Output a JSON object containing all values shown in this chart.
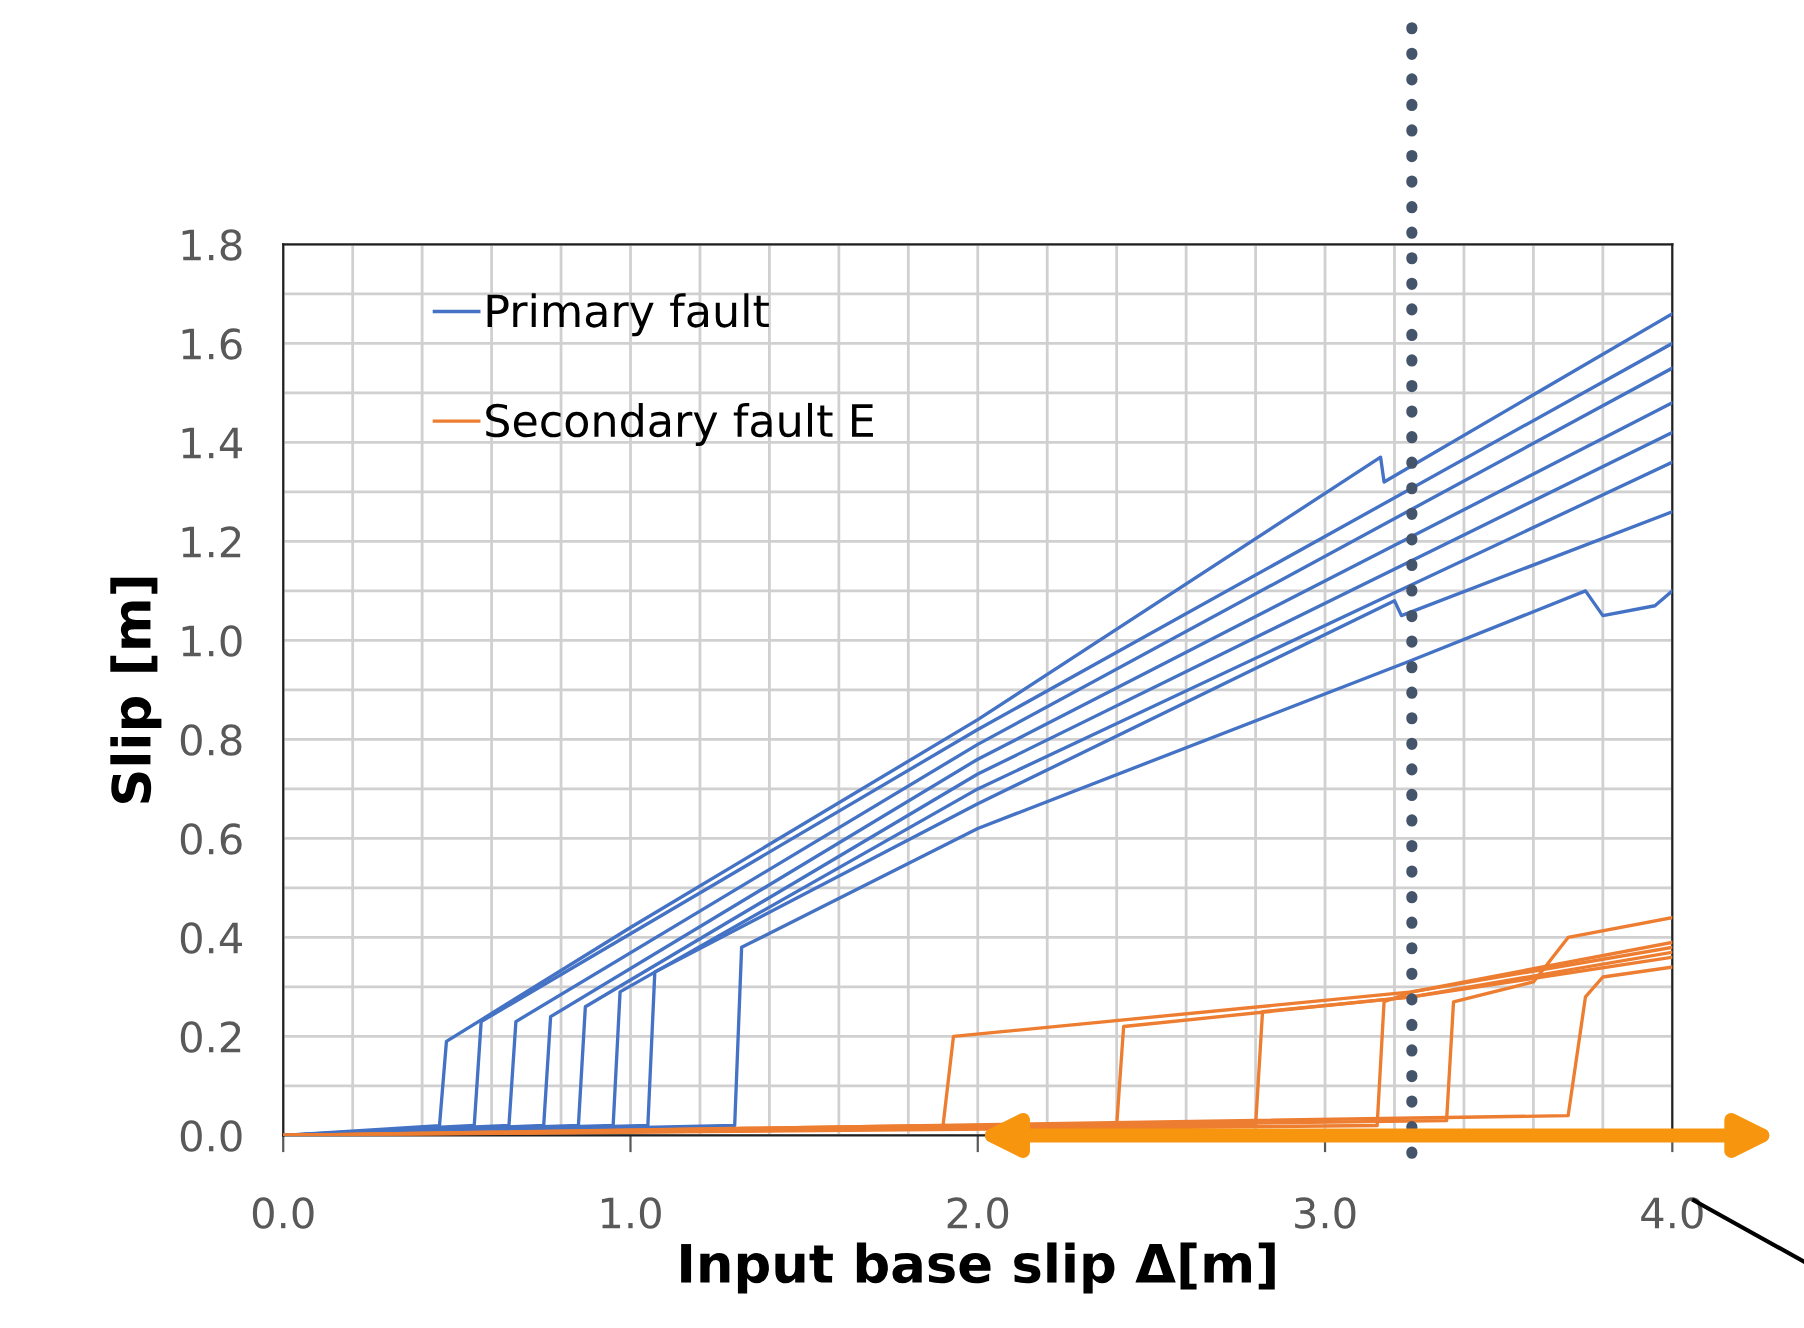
{
  "chart_data": {
    "type": "line",
    "xlabel": "Input base slip Δ[m]",
    "ylabel": "Slip [m]",
    "xlim": [
      0,
      4
    ],
    "ylim": [
      0,
      1.8
    ],
    "xticks": [
      {
        "value": 0,
        "label": "0.0"
      },
      {
        "value": 1,
        "label": "1.0"
      },
      {
        "value": 2,
        "label": "2.0"
      },
      {
        "value": 3,
        "label": "3.0"
      },
      {
        "value": 4,
        "label": "4.0"
      }
    ],
    "yticks": [
      {
        "value": 0,
        "label": "0.0"
      },
      {
        "value": 0.2,
        "label": "0.2"
      },
      {
        "value": 0.4,
        "label": "0.4"
      },
      {
        "value": 0.6,
        "label": "0.6"
      },
      {
        "value": 0.8,
        "label": "0.8"
      },
      {
        "value": 1.0,
        "label": "1.0"
      },
      {
        "value": 1.2,
        "label": "1.2"
      },
      {
        "value": 1.4,
        "label": "1.4"
      },
      {
        "value": 1.6,
        "label": "1.6"
      },
      {
        "value": 1.8,
        "label": "1.8"
      }
    ],
    "grid": true,
    "legend": "top left",
    "marker": "none",
    "line_style": "solid",
    "ref_lines": [
      {
        "axis": "x",
        "value": 3.25,
        "label": null,
        "color": "#44546a",
        "line_style": "dotted"
      }
    ],
    "series": [
      {
        "name": "Primary fault",
        "color": "#4472c4",
        "x": [
          0,
          0.45,
          0.47,
          1.0,
          2.0,
          3.16,
          3.17,
          4.0
        ],
        "values": [
          0,
          0.02,
          0.19,
          0.42,
          0.84,
          1.37,
          1.32,
          1.66
        ]
      },
      {
        "color": "#4472c4",
        "x": [
          0,
          0.55,
          0.57,
          2.0,
          4.0
        ],
        "values": [
          0,
          0.02,
          0.23,
          0.82,
          1.6
        ]
      },
      {
        "color": "#4472c4",
        "x": [
          0,
          0.65,
          0.67,
          2.0,
          4.0
        ],
        "values": [
          0,
          0.02,
          0.23,
          0.79,
          1.55
        ]
      },
      {
        "color": "#4472c4",
        "x": [
          0,
          0.75,
          0.77,
          2.0,
          4.0
        ],
        "values": [
          0,
          0.02,
          0.24,
          0.76,
          1.48
        ]
      },
      {
        "color": "#4472c4",
        "x": [
          0,
          0.85,
          0.87,
          2.0,
          4.0
        ],
        "values": [
          0,
          0.02,
          0.26,
          0.73,
          1.42
        ]
      },
      {
        "color": "#4472c4",
        "x": [
          0,
          0.95,
          0.97,
          2.0,
          4.0
        ],
        "values": [
          0,
          0.02,
          0.29,
          0.7,
          1.36
        ]
      },
      {
        "color": "#4472c4",
        "x": [
          0,
          1.05,
          1.07,
          2.0,
          3.2,
          3.22,
          4.0
        ],
        "values": [
          0,
          0.02,
          0.33,
          0.67,
          1.08,
          1.05,
          1.26
        ]
      },
      {
        "color": "#4472c4",
        "x": [
          0,
          1.3,
          1.32,
          2.0,
          3.25,
          3.75,
          3.8,
          3.95,
          4.0
        ],
        "values": [
          0,
          0.02,
          0.38,
          0.62,
          0.96,
          1.1,
          1.05,
          1.07,
          1.1
        ]
      },
      {
        "name": "Secondary fault E",
        "color": "#ed7d31",
        "x": [
          0,
          1.9,
          1.93,
          3.25,
          4.0
        ],
        "values": [
          0,
          0.02,
          0.2,
          0.29,
          0.38
        ]
      },
      {
        "color": "#ed7d31",
        "x": [
          0,
          2.4,
          2.42,
          3.25,
          4.0
        ],
        "values": [
          0,
          0.02,
          0.22,
          0.28,
          0.37
        ]
      },
      {
        "color": "#ed7d31",
        "x": [
          0,
          2.8,
          2.82,
          3.25,
          4.0
        ],
        "values": [
          0,
          0.02,
          0.25,
          0.28,
          0.36
        ]
      },
      {
        "color": "#ed7d31",
        "x": [
          0,
          3.15,
          3.17,
          3.25,
          4.0
        ],
        "values": [
          0,
          0.02,
          0.27,
          0.29,
          0.39
        ]
      },
      {
        "color": "#ed7d31",
        "x": [
          0,
          3.35,
          3.37,
          3.6,
          3.7,
          4.0
        ],
        "values": [
          0,
          0.03,
          0.27,
          0.31,
          0.4,
          0.44
        ]
      },
      {
        "color": "#ed7d31",
        "x": [
          0,
          3.7,
          3.75,
          3.8,
          4.0
        ],
        "values": [
          0,
          0.04,
          0.28,
          0.32,
          0.34
        ]
      }
    ]
  }
}
